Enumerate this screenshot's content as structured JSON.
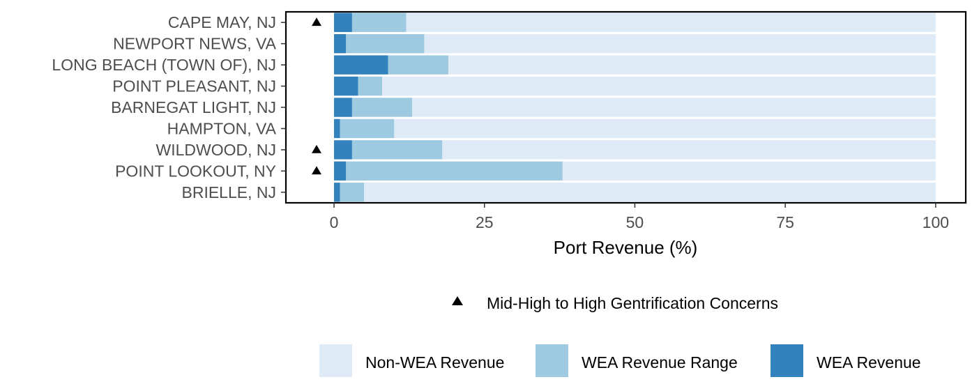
{
  "chart_data": {
    "type": "bar",
    "orientation": "horizontal",
    "stacked": true,
    "categories": [
      "CAPE MAY, NJ",
      "NEWPORT NEWS, VA",
      "LONG BEACH (TOWN OF), NJ",
      "POINT PLEASANT, NJ",
      "BARNEGAT LIGHT, NJ",
      "HAMPTON, VA",
      "WILDWOOD, NJ",
      "POINT LOOKOUT, NY",
      "BRIELLE, NJ"
    ],
    "series": [
      {
        "name": "WEA Revenue",
        "values": [
          3,
          2,
          9,
          4,
          3,
          1,
          3,
          2,
          1
        ]
      },
      {
        "name": "WEA Revenue Range",
        "values": [
          9,
          13,
          10,
          4,
          10,
          9,
          15,
          36,
          4
        ]
      },
      {
        "name": "Non-WEA Revenue",
        "values": [
          88,
          85,
          81,
          92,
          87,
          90,
          82,
          62,
          95
        ]
      }
    ],
    "gentrification_markers": [
      true,
      false,
      false,
      false,
      false,
      false,
      true,
      true,
      false
    ],
    "xlabel": "Port Revenue (%)",
    "ylabel": "",
    "xlim": [
      -8,
      105
    ],
    "xticks": [
      0,
      25,
      50,
      75,
      100
    ],
    "grid": false,
    "legend_placement": "bottom",
    "legend": {
      "marker_label": "Mid-High to High Gentrification Concerns",
      "items": [
        {
          "name": "Non-WEA Revenue",
          "color": "#deebf7"
        },
        {
          "name": "WEA Revenue Range",
          "color": "#9ecae1"
        },
        {
          "name": "WEA Revenue",
          "color": "#3182bd"
        }
      ]
    },
    "colors": {
      "WEA Revenue": "#3182bd",
      "WEA Revenue Range": "#9ecae1",
      "Non-WEA Revenue": "#deebf7"
    }
  }
}
